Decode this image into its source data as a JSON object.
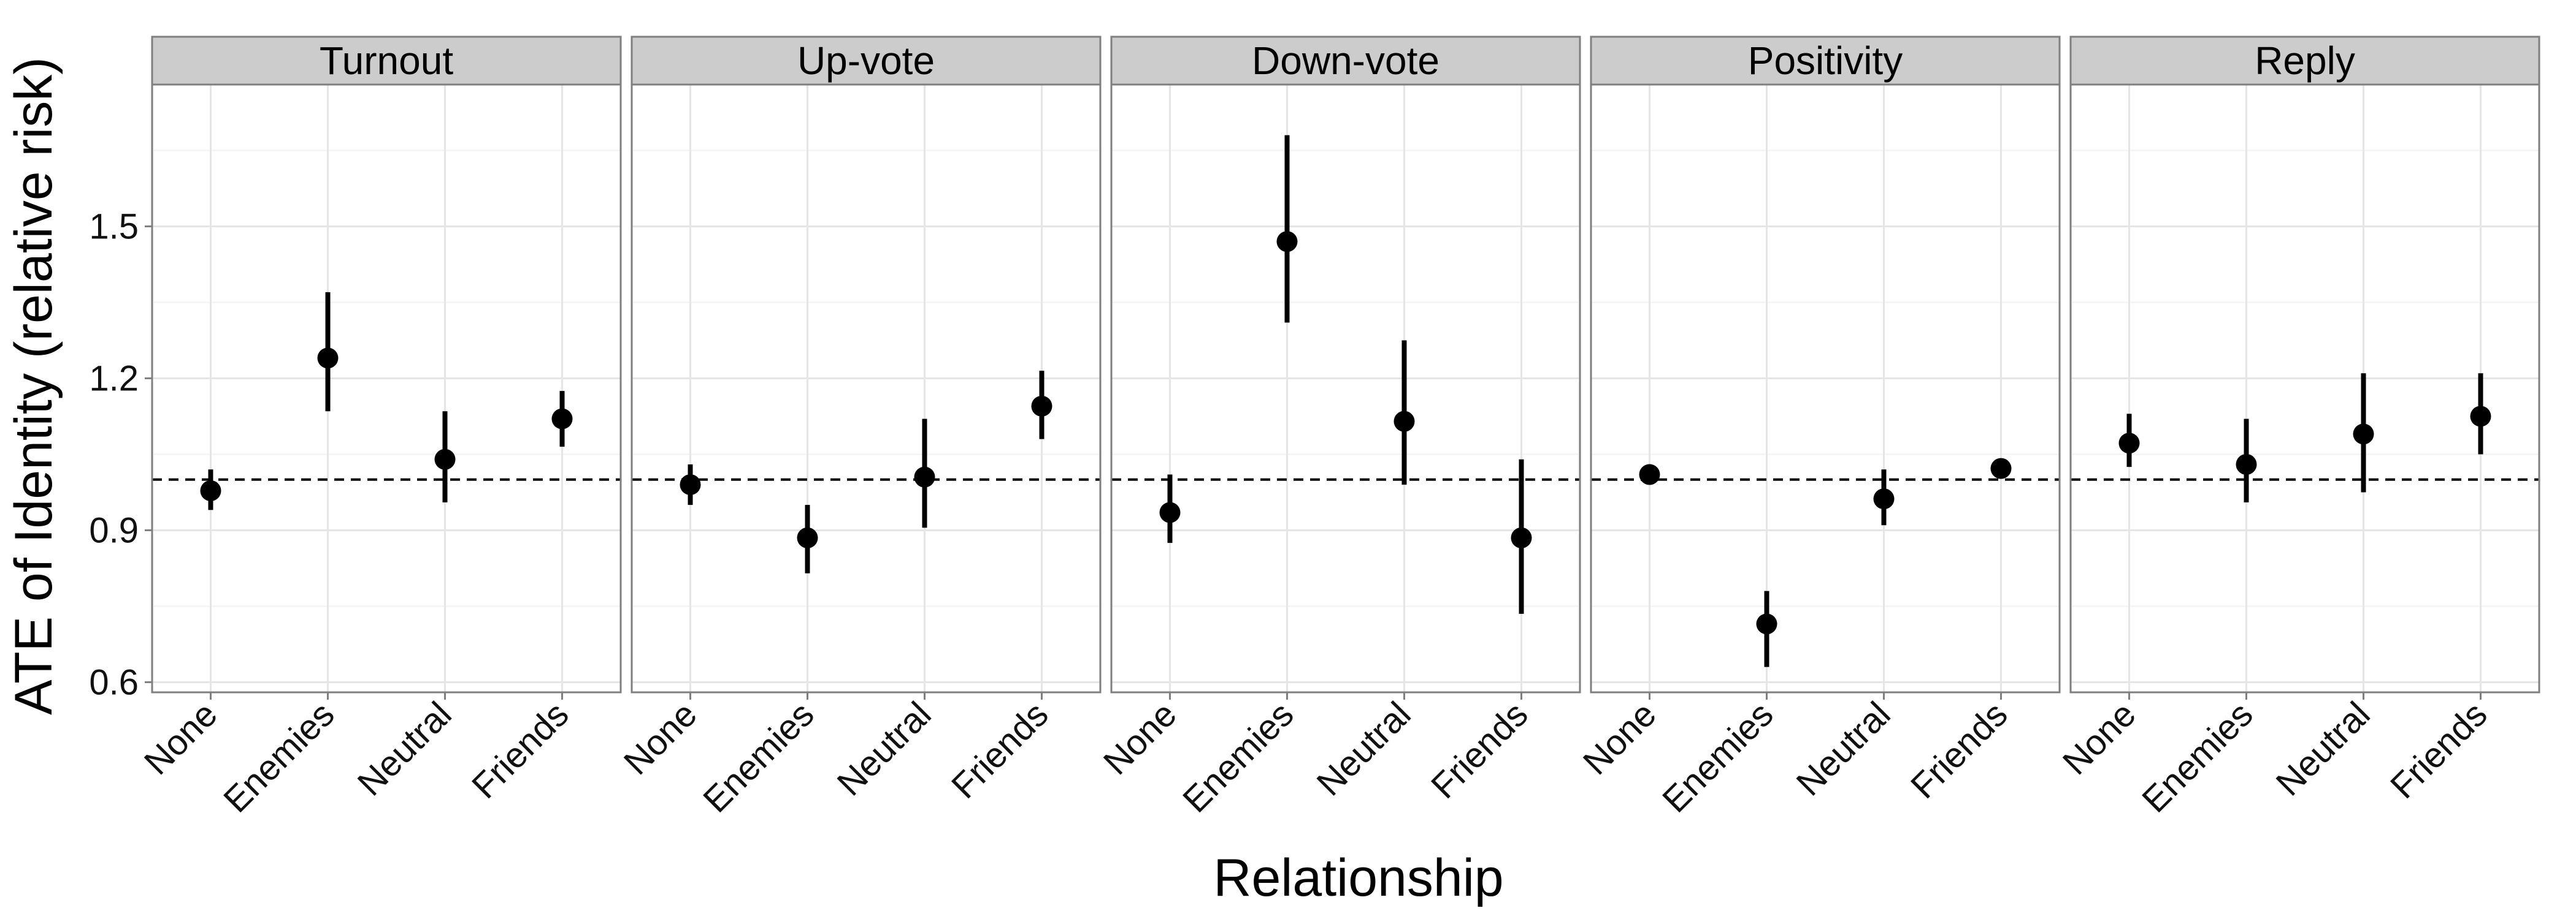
{
  "chart_data": {
    "type": "scatter",
    "subtype": "point-range facet plot",
    "xlabel": "Relationship",
    "ylabel": "ATE of Identity (relative risk)",
    "categories": [
      "None",
      "Enemies",
      "Neutral",
      "Friends"
    ],
    "y_ticks": [
      "0.6",
      "0.9",
      "1.2",
      "1.5"
    ],
    "ylim": [
      0.58,
      1.78
    ],
    "reference_line": 1.0,
    "reference_line_style": "dashed",
    "grid": true,
    "panel_background": "#ffffff",
    "strip_background": "#cccccc",
    "point_color": "#000000",
    "panels": [
      {
        "title": "Turnout",
        "points": [
          {
            "x": "None",
            "y": 0.978,
            "low": 0.94,
            "high": 1.02
          },
          {
            "x": "Enemies",
            "y": 1.24,
            "low": 1.135,
            "high": 1.37
          },
          {
            "x": "Neutral",
            "y": 1.04,
            "low": 0.955,
            "high": 1.135
          },
          {
            "x": "Friends",
            "y": 1.12,
            "low": 1.065,
            "high": 1.175
          }
        ]
      },
      {
        "title": "Up-vote",
        "points": [
          {
            "x": "None",
            "y": 0.99,
            "low": 0.95,
            "high": 1.03
          },
          {
            "x": "Enemies",
            "y": 0.885,
            "low": 0.815,
            "high": 0.95
          },
          {
            "x": "Neutral",
            "y": 1.005,
            "low": 0.905,
            "high": 1.12
          },
          {
            "x": "Friends",
            "y": 1.145,
            "low": 1.08,
            "high": 1.215
          }
        ]
      },
      {
        "title": "Down-vote",
        "points": [
          {
            "x": "None",
            "y": 0.935,
            "low": 0.875,
            "high": 1.01
          },
          {
            "x": "Enemies",
            "y": 1.47,
            "low": 1.31,
            "high": 1.68
          },
          {
            "x": "Neutral",
            "y": 1.115,
            "low": 0.99,
            "high": 1.275
          },
          {
            "x": "Friends",
            "y": 0.885,
            "low": 0.735,
            "high": 1.04
          }
        ]
      },
      {
        "title": "Positivity",
        "points": [
          {
            "x": "None",
            "y": 1.01,
            "low": 1.0,
            "high": 1.02
          },
          {
            "x": "Enemies",
            "y": 0.715,
            "low": 0.63,
            "high": 0.78
          },
          {
            "x": "Neutral",
            "y": 0.962,
            "low": 0.91,
            "high": 1.02
          },
          {
            "x": "Friends",
            "y": 1.022,
            "low": 1.01,
            "high": 1.035
          }
        ]
      },
      {
        "title": "Reply",
        "points": [
          {
            "x": "None",
            "y": 1.072,
            "low": 1.025,
            "high": 1.13
          },
          {
            "x": "Enemies",
            "y": 1.03,
            "low": 0.955,
            "high": 1.12
          },
          {
            "x": "Neutral",
            "y": 1.09,
            "low": 0.975,
            "high": 1.21
          },
          {
            "x": "Friends",
            "y": 1.125,
            "low": 1.05,
            "high": 1.21
          }
        ]
      }
    ]
  }
}
